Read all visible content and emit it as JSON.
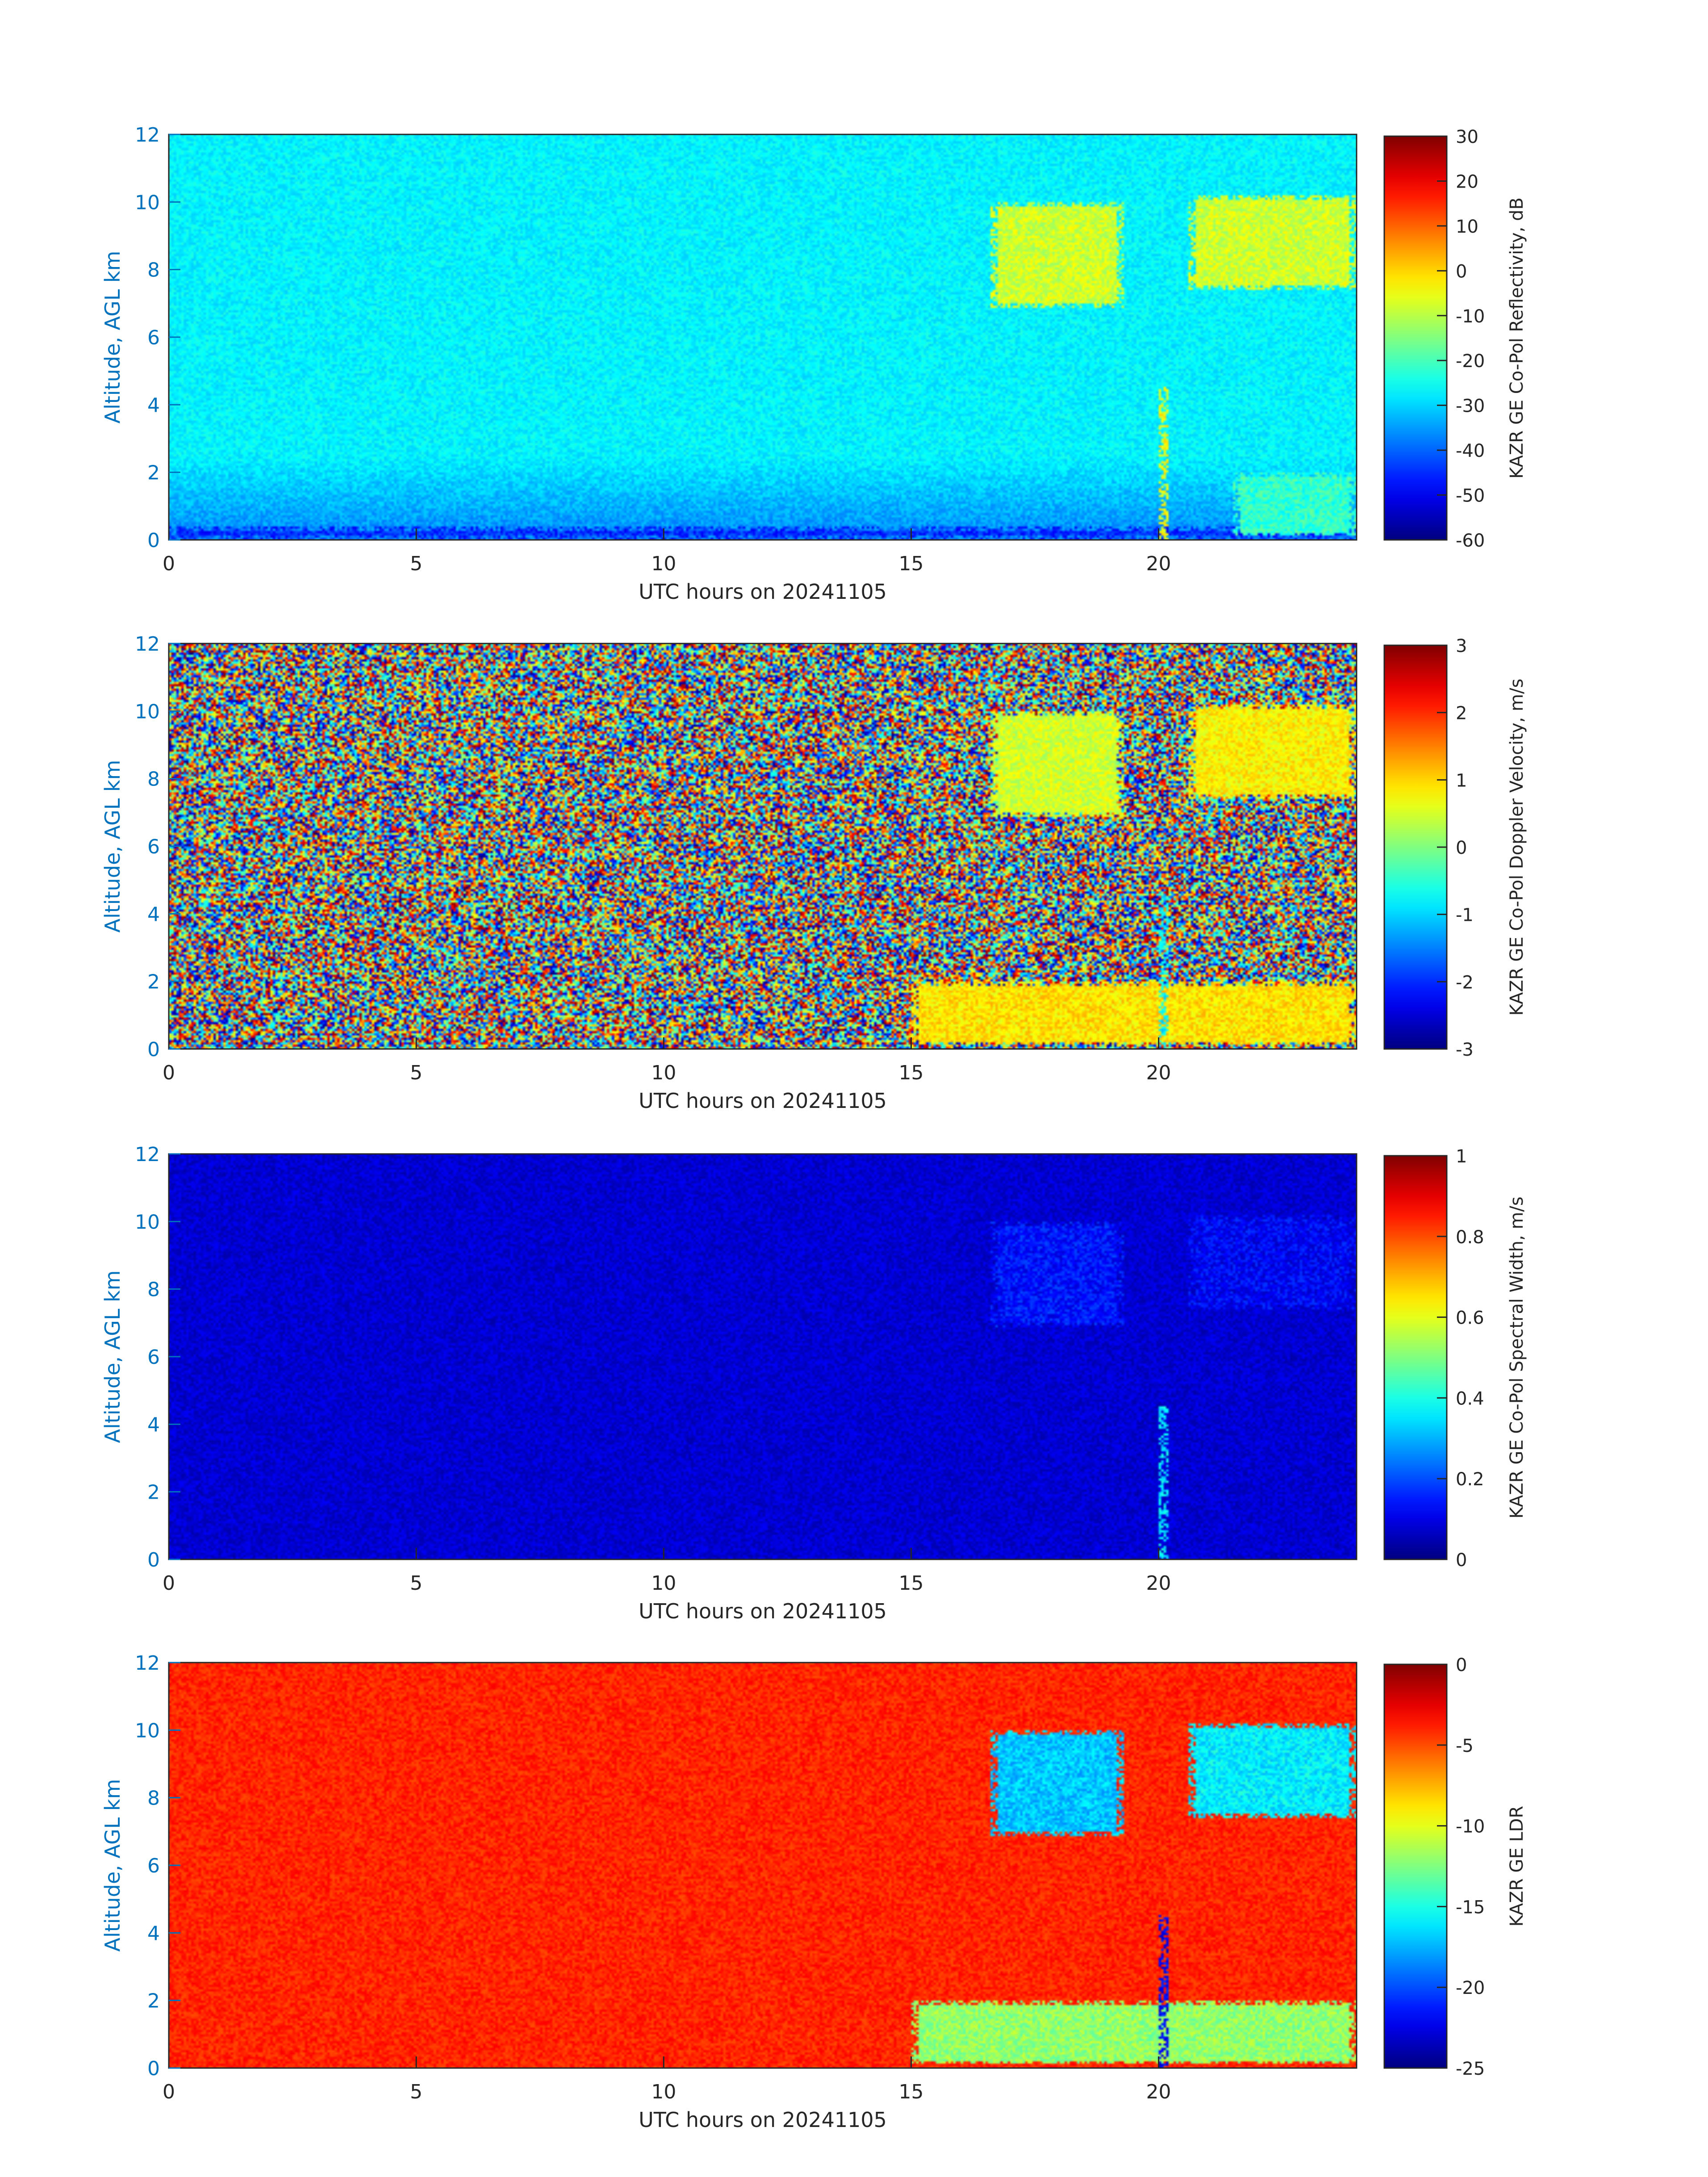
{
  "chart_data": [
    {
      "type": "heatmap",
      "title": "",
      "xlabel": "UTC hours on 20241105",
      "ylabel": "Altitude, AGL km",
      "xlim": [
        0,
        24
      ],
      "ylim": [
        0,
        12
      ],
      "xticks": [
        0,
        5,
        10,
        15,
        20
      ],
      "yticks": [
        0,
        2,
        4,
        6,
        8,
        10,
        12
      ],
      "colormap": "jet",
      "colorbar": {
        "label": "KAZR GE Co-Pol Reflectivity, dB",
        "range": [
          -60,
          30
        ],
        "ticks": [
          -60,
          -50,
          -40,
          -30,
          -20,
          -10,
          0,
          10,
          20,
          30
        ]
      },
      "background_value": -27,
      "features": [
        {
          "kind": "near-surface clutter",
          "t": [
            0,
            24
          ],
          "z": [
            0,
            0.4
          ],
          "value": -45
        },
        {
          "kind": "cirrus",
          "t": [
            16.6,
            19.3
          ],
          "z": [
            6.9,
            10.0
          ],
          "value": -8
        },
        {
          "kind": "cirrus",
          "t": [
            20.6,
            24.0
          ],
          "z": [
            7.4,
            10.2
          ],
          "value": -8
        },
        {
          "kind": "low cloud",
          "t": [
            21.5,
            24.0
          ],
          "z": [
            0.1,
            2.0
          ],
          "value": -22
        },
        {
          "kind": "spike",
          "t": [
            20.0,
            20.2
          ],
          "z": [
            0.0,
            4.5
          ],
          "value": -5
        }
      ]
    },
    {
      "type": "heatmap",
      "title": "",
      "xlabel": "UTC hours on 20241105",
      "ylabel": "Altitude, AGL km",
      "xlim": [
        0,
        24
      ],
      "ylim": [
        0,
        12
      ],
      "xticks": [
        0,
        5,
        10,
        15,
        20
      ],
      "yticks": [
        0,
        2,
        4,
        6,
        8,
        10,
        12
      ],
      "colormap": "jet",
      "colorbar": {
        "label": "KAZR GE Co-Pol Doppler Velocity, m/s",
        "range": [
          -3,
          3
        ],
        "ticks": [
          -3,
          -2,
          -1,
          0,
          1,
          2,
          3
        ]
      },
      "background_value": "noise",
      "features": [
        {
          "kind": "cirrus",
          "t": [
            16.6,
            19.3
          ],
          "z": [
            6.9,
            10.0
          ],
          "value": 0.5
        },
        {
          "kind": "cirrus",
          "t": [
            20.6,
            24.0
          ],
          "z": [
            7.4,
            10.2
          ],
          "value": 0.8
        },
        {
          "kind": "low cloud",
          "t": [
            15.0,
            24.0
          ],
          "z": [
            0.1,
            2.0
          ],
          "value": 0.9
        },
        {
          "kind": "spike",
          "t": [
            20.0,
            20.2
          ],
          "z": [
            0.0,
            4.5
          ],
          "value": -0.8
        }
      ]
    },
    {
      "type": "heatmap",
      "title": "",
      "xlabel": "UTC hours on 20241105",
      "ylabel": "Altitude, AGL km",
      "xlim": [
        0,
        24
      ],
      "ylim": [
        0,
        12
      ],
      "xticks": [
        0,
        5,
        10,
        15,
        20
      ],
      "yticks": [
        0,
        2,
        4,
        6,
        8,
        10,
        12
      ],
      "colormap": "jet",
      "colorbar": {
        "label": "KAZR GE Co-Pol Spectral Width, m/s",
        "range": [
          0,
          1
        ],
        "ticks": [
          0,
          0.2,
          0.4,
          0.6,
          0.8,
          1
        ]
      },
      "background_value": 0.08,
      "features": [
        {
          "kind": "cirrus",
          "t": [
            16.6,
            19.3
          ],
          "z": [
            6.9,
            10.0
          ],
          "value": 0.14
        },
        {
          "kind": "cirrus",
          "t": [
            20.6,
            24.0
          ],
          "z": [
            7.4,
            10.2
          ],
          "value": 0.12
        },
        {
          "kind": "spike",
          "t": [
            20.0,
            20.2
          ],
          "z": [
            0.0,
            4.5
          ],
          "value": 0.35
        }
      ]
    },
    {
      "type": "heatmap",
      "title": "",
      "xlabel": "UTC hours on 20241105",
      "ylabel": "Altitude, AGL km",
      "xlim": [
        0,
        24
      ],
      "ylim": [
        0,
        12
      ],
      "xticks": [
        0,
        5,
        10,
        15,
        20
      ],
      "yticks": [
        0,
        2,
        4,
        6,
        8,
        10,
        12
      ],
      "colormap": "jet",
      "colorbar": {
        "label": "KAZR GE LDR",
        "range": [
          -25,
          0
        ],
        "ticks": [
          -25,
          -20,
          -15,
          -10,
          -5,
          0
        ]
      },
      "background_value": -4,
      "features": [
        {
          "kind": "cirrus",
          "t": [
            16.6,
            19.3
          ],
          "z": [
            6.9,
            10.0
          ],
          "value": -17
        },
        {
          "kind": "cirrus",
          "t": [
            20.6,
            24.0
          ],
          "z": [
            7.4,
            10.2
          ],
          "value": -16
        },
        {
          "kind": "low cloud",
          "t": [
            15.0,
            24.0
          ],
          "z": [
            0.1,
            2.0
          ],
          "value": -12
        },
        {
          "kind": "spike",
          "t": [
            20.0,
            20.2
          ],
          "z": [
            0.0,
            4.5
          ],
          "value": -22
        }
      ]
    }
  ]
}
